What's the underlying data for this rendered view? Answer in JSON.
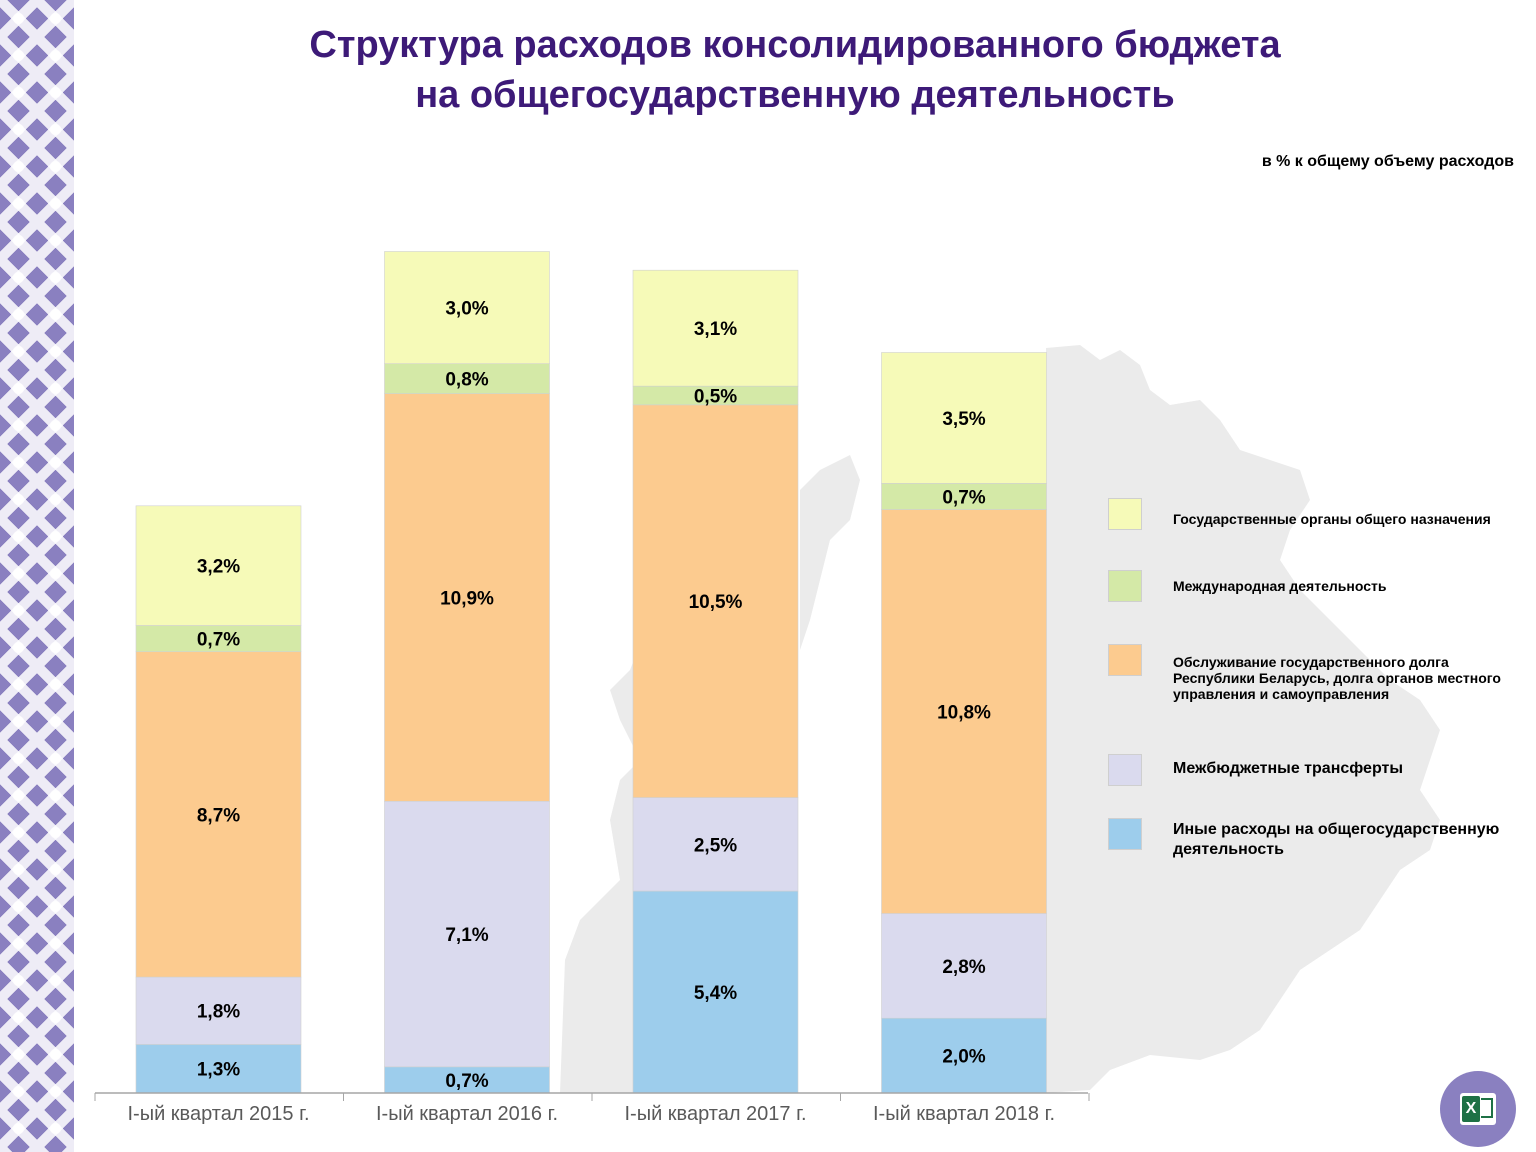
{
  "title_lines": [
    "Структура расходов консолидированного бюджета",
    "на общегосударственную деятельность"
  ],
  "units_note": "в % к общему объему расходов",
  "colors": {
    "title": "#3d1a78",
    "ornament": "#8a80c0",
    "map": "#ebebeb"
  },
  "chart_data": {
    "type": "bar",
    "stacked": true,
    "title": "Структура расходов консолидированного бюджета на общегосударственную деятельность",
    "ylabel": "в % к общему объему расходов",
    "categories": [
      "I-ый квартал 2015 г.",
      "I-ый квартал 2016 г.",
      "I-ый квартал 2017 г.",
      "I-ый квартал 2018 г."
    ],
    "series": [
      {
        "name": "Иные расходы на общегосударственную деятельность",
        "values": [
          1.3,
          0.7,
          5.4,
          2.0
        ],
        "labels": [
          "1,3%",
          "0,7%",
          "5,4%",
          "2,0%"
        ],
        "color": "#9dcdec"
      },
      {
        "name": "Межбюджетные трансферты",
        "values": [
          1.8,
          7.1,
          2.5,
          2.8
        ],
        "labels": [
          "1,8%",
          "7,1%",
          "2,5%",
          "2,8%"
        ],
        "color": "#dadaee"
      },
      {
        "name": "Обслуживание государственного долга Республики Беларусь, долга органов местного управления и самоуправления",
        "values": [
          8.7,
          10.9,
          10.5,
          10.8
        ],
        "labels": [
          "8,7%",
          "10,9%",
          "10,5%",
          "10,8%"
        ],
        "color": "#fccb8f"
      },
      {
        "name": "Международная деятельность",
        "values": [
          0.7,
          0.8,
          0.5,
          0.7
        ],
        "labels": [
          "0,7%",
          "0,8%",
          "0,5%",
          "0,7%"
        ],
        "color": "#d4e9a7"
      },
      {
        "name": "Государственные органы общего назначения",
        "values": [
          3.2,
          3.0,
          3.1,
          3.5
        ],
        "labels": [
          "3,2%",
          "3,0%",
          "3,1%",
          "3,5%"
        ],
        "color": "#f6fab8"
      }
    ],
    "legend": [
      {
        "label": "Государственные органы общего назначения",
        "color": "#f6fab8"
      },
      {
        "label": "Международная деятельность",
        "color": "#d4e9a7"
      },
      {
        "label": "Обслуживание государственного долга Республики Беларусь, долга органов местного управления и самоуправления",
        "color": "#fccb8f"
      },
      {
        "label": "Межбюджетные трансферты",
        "color": "#dadaee"
      },
      {
        "label": "Иные расходы на общегосударственную деятельность",
        "color": "#9dcdec"
      }
    ],
    "legend_position": "right",
    "grid": false
  },
  "excel_button": {
    "icon": "excel-icon",
    "glyph": "X"
  }
}
